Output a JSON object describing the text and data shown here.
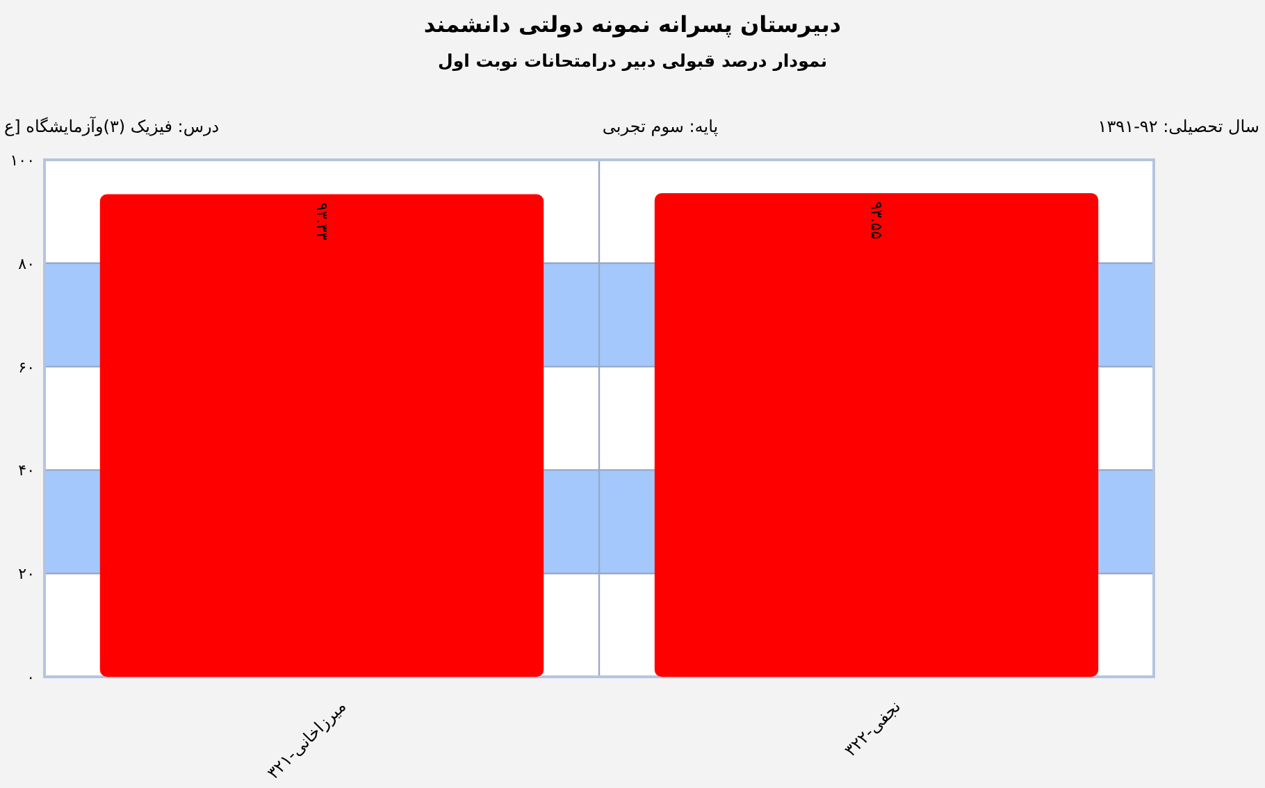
{
  "chart_data": {
    "type": "bar",
    "title": "دبیرستان پسرانه نمونه دولتی دانشمند",
    "subtitle": "نمودار درصد قبولی دبیر درامتحانات نوبت اول",
    "annotations": [
      "سال تحصیلی: ۹۲-۱۳۹۱",
      "پایه: سوم تجربی",
      "درس: فیزیک (۳)وآزمایشگاه [ع"
    ],
    "categories": [
      "میرزاخانی-۳۲۱",
      "نجفی-۳۲۲"
    ],
    "values": [
      93.33,
      93.55
    ],
    "value_labels": [
      "۹۳.۳۳",
      "۹۳.۵۵"
    ],
    "color": "#ff0000",
    "ylim": [
      0,
      100
    ],
    "yticks": [
      {
        "value": 0,
        "label": "۰"
      },
      {
        "value": 20,
        "label": "۲۰"
      },
      {
        "value": 40,
        "label": "۴۰"
      },
      {
        "value": 60,
        "label": "۶۰"
      },
      {
        "value": 80,
        "label": "۸۰"
      },
      {
        "value": 100,
        "label": "۱۰۰"
      }
    ],
    "grid": true,
    "bands": [
      {
        "axis": "y",
        "from": 20,
        "to": 40,
        "color": "#a4c8fb"
      },
      {
        "axis": "y",
        "from": 60,
        "to": 80,
        "color": "#a4c8fb"
      }
    ]
  }
}
